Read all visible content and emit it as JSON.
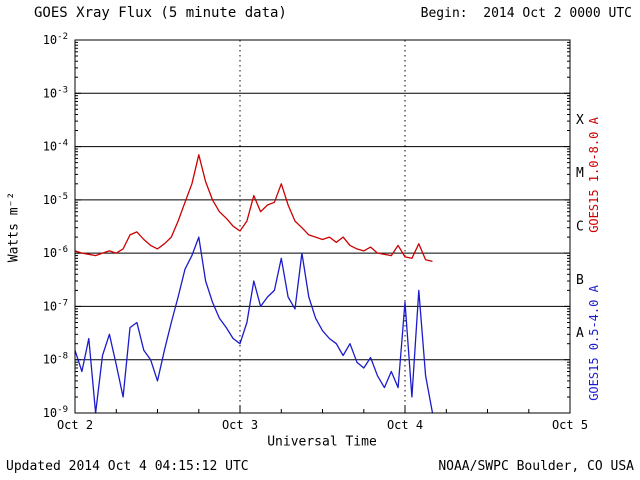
{
  "header": {
    "title": "GOES Xray Flux (5 minute data)",
    "begin_label": "Begin:",
    "begin_value": "2014 Oct 2 0000 UTC"
  },
  "footer": {
    "updated": "Updated 2014 Oct  4 04:15:12 UTC",
    "source": "NOAA/SWPC Boulder, CO USA"
  },
  "chart_data": {
    "type": "line",
    "title": "GOES Xray Flux (5 minute data)",
    "xlabel": "Universal Time",
    "ylabel": "Watts m⁻²",
    "x_unit": "hours since 2014 Oct 2 0000 UTC",
    "xlim": [
      0,
      72
    ],
    "ylim_exp": [
      -9,
      -2
    ],
    "grid": {
      "horizontal_solid": true,
      "v_dotted_at": [
        24,
        48
      ]
    },
    "x_ticks": [
      {
        "pos": 0,
        "label": "Oct 2"
      },
      {
        "pos": 24,
        "label": "Oct 3"
      },
      {
        "pos": 48,
        "label": "Oct 4"
      },
      {
        "pos": 72,
        "label": "Oct 5"
      }
    ],
    "y_tick_exponents": [
      -2,
      -3,
      -4,
      -5,
      -6,
      -7,
      -8,
      -9
    ],
    "flare_classes": [
      {
        "label": "X",
        "exp": -3.5
      },
      {
        "label": "M",
        "exp": -4.5
      },
      {
        "label": "C",
        "exp": -5.5
      },
      {
        "label": "B",
        "exp": -6.5
      },
      {
        "label": "A",
        "exp": -7.5
      }
    ],
    "x_hours": [
      0,
      1,
      2,
      3,
      4,
      5,
      6,
      7,
      8,
      9,
      10,
      11,
      12,
      13,
      14,
      15,
      16,
      17,
      18,
      19,
      20,
      21,
      22,
      23,
      24,
      25,
      26,
      27,
      28,
      29,
      30,
      31,
      32,
      33,
      34,
      35,
      36,
      37,
      38,
      39,
      40,
      41,
      42,
      43,
      44,
      45,
      46,
      47,
      48,
      49,
      50,
      51,
      52
    ],
    "series": [
      {
        "name": "GOES15 1.0-8.0 A",
        "color": "#cc0000",
        "values": [
          1.1e-06,
          1e-06,
          9.5e-07,
          9e-07,
          1e-06,
          1.1e-06,
          1e-06,
          1.2e-06,
          2.2e-06,
          2.5e-06,
          1.8e-06,
          1.4e-06,
          1.2e-06,
          1.5e-06,
          2e-06,
          4e-06,
          9e-06,
          2e-05,
          7e-05,
          2.2e-05,
          1e-05,
          6e-06,
          4.5e-06,
          3.2e-06,
          2.6e-06,
          4e-06,
          1.2e-05,
          6e-06,
          8e-06,
          9e-06,
          2e-05,
          8e-06,
          4e-06,
          3e-06,
          2.2e-06,
          2e-06,
          1.8e-06,
          2e-06,
          1.6e-06,
          2e-06,
          1.4e-06,
          1.2e-06,
          1.1e-06,
          1.3e-06,
          1e-06,
          9.5e-07,
          9e-07,
          1.4e-06,
          8.5e-07,
          8e-07,
          1.5e-06,
          7.5e-07,
          7e-07
        ]
      },
      {
        "name": "GOES15 0.5-4.0 A",
        "color": "#1b1bcc",
        "values": [
          1.5e-08,
          6e-09,
          2.5e-08,
          1e-09,
          1.2e-08,
          3e-08,
          8e-09,
          2e-09,
          4e-08,
          5e-08,
          1.5e-08,
          1e-08,
          4e-09,
          1.5e-08,
          5e-08,
          1.5e-07,
          5e-07,
          9e-07,
          2e-06,
          3e-07,
          1.2e-07,
          6e-08,
          4e-08,
          2.5e-08,
          2e-08,
          5e-08,
          3e-07,
          1e-07,
          1.5e-07,
          2e-07,
          8e-07,
          1.5e-07,
          9e-08,
          1e-06,
          1.5e-07,
          6e-08,
          3.5e-08,
          2.5e-08,
          2e-08,
          1.2e-08,
          2e-08,
          9e-09,
          7e-09,
          1.1e-08,
          5e-09,
          3e-09,
          6e-09,
          3e-09,
          1.2e-07,
          2e-09,
          2e-07,
          5e-09,
          1e-09
        ]
      }
    ]
  }
}
